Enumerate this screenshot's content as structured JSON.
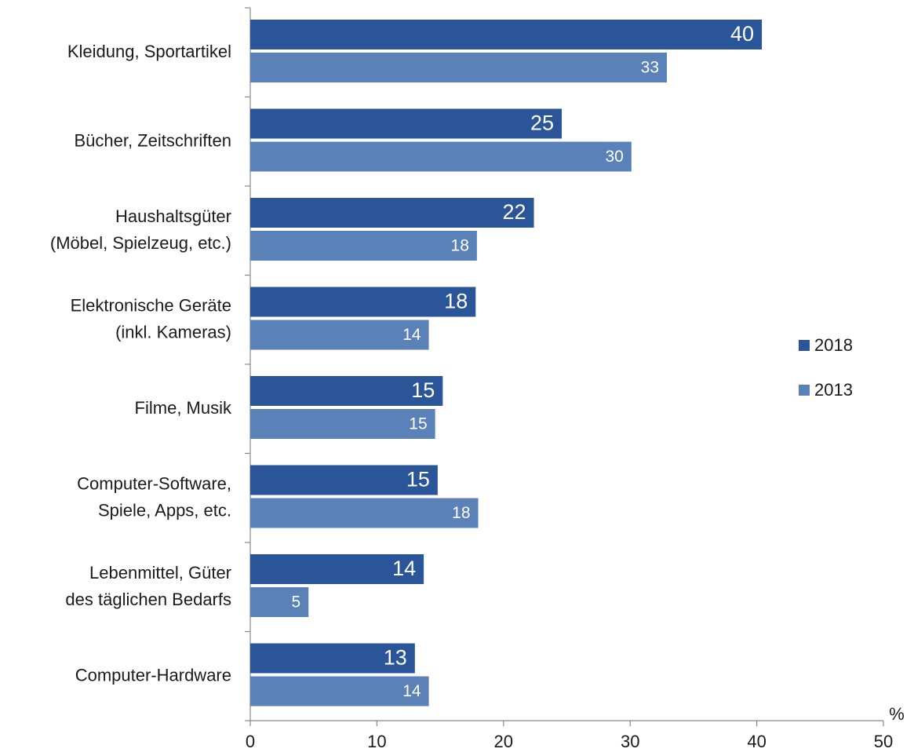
{
  "chart_data": {
    "type": "bar",
    "orientation": "horizontal",
    "categories": [
      "Kleidung, Sportartikel",
      "Bücher, Zeitschriften",
      "Haushaltsgüter\n(Möbel, Spielzeug, etc.)",
      "Elektronische Geräte\n(inkl. Kameras)",
      "Filme, Musik",
      "Computer-Software,\nSpiele, Apps, etc.",
      "Lebenmittel, Güter\ndes täglichen Bedarfs",
      "Computer-Hardware"
    ],
    "series": [
      {
        "name": "2018",
        "color": "#2a5699",
        "values": [
          40.4,
          24.6,
          22.4,
          17.8,
          15.2,
          14.8,
          13.7,
          13.0
        ],
        "value_labels": [
          "40",
          "25",
          "22",
          "18",
          "15",
          "15",
          "14",
          "13"
        ]
      },
      {
        "name": "2013",
        "color": "#5b82b8",
        "values": [
          32.9,
          30.1,
          17.9,
          14.1,
          14.6,
          18.0,
          4.6,
          14.1
        ],
        "value_labels": [
          "33",
          "30",
          "18",
          "14",
          "15",
          "18",
          "5",
          "14"
        ]
      }
    ],
    "xlim": [
      0,
      50
    ],
    "xticks": [
      0,
      10,
      20,
      30,
      40,
      50
    ],
    "xlabel": "%",
    "legend": "right"
  }
}
